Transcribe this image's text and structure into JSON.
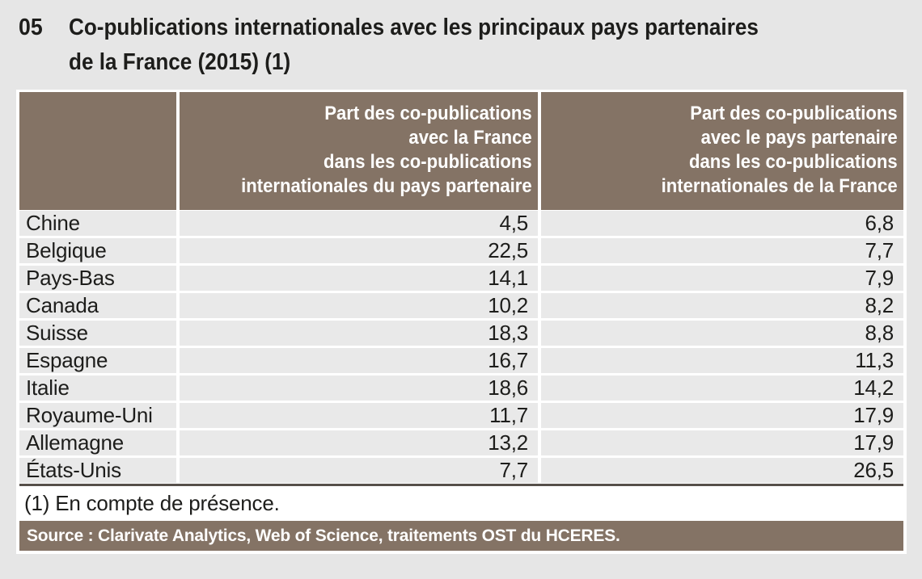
{
  "colors": {
    "accent_taupe": "#847365",
    "row_gray": "#e9e9e9",
    "page_background": "#e6e6e6",
    "panel_white": "#ffffff",
    "text_dark": "#1d1d1b",
    "table_bottom_rule": "#56504a"
  },
  "title": {
    "number": "05",
    "lines": [
      "Co-publications internationales avec les principaux pays partenaires",
      "de la France (2015) (1)"
    ],
    "full": "Co-publications internationales avec les principaux pays partenaires de la France (2015) (1)"
  },
  "table": {
    "headers": [
      {
        "lines": [
          "Part des co-publications",
          "avec la France",
          "dans les co-publications",
          "internationales du pays partenaire"
        ]
      },
      {
        "lines": [
          "Part des co-publications",
          "avec le pays partenaire",
          "dans les co-publications",
          "internationales de la France"
        ]
      }
    ],
    "rows": [
      {
        "country": "Chine",
        "part_avec_france": "4,5",
        "part_avec_pays": "6,8"
      },
      {
        "country": "Belgique",
        "part_avec_france": "22,5",
        "part_avec_pays": "7,7"
      },
      {
        "country": "Pays-Bas",
        "part_avec_france": "14,1",
        "part_avec_pays": "7,9"
      },
      {
        "country": "Canada",
        "part_avec_france": "10,2",
        "part_avec_pays": "8,2"
      },
      {
        "country": "Suisse",
        "part_avec_france": "18,3",
        "part_avec_pays": "8,8"
      },
      {
        "country": "Espagne",
        "part_avec_france": "16,7",
        "part_avec_pays": "11,3"
      },
      {
        "country": "Italie",
        "part_avec_france": "18,6",
        "part_avec_pays": "14,2"
      },
      {
        "country": "Royaume-Uni",
        "part_avec_france": "11,7",
        "part_avec_pays": "17,9"
      },
      {
        "country": "Allemagne",
        "part_avec_france": "13,2",
        "part_avec_pays": "17,9"
      },
      {
        "country": "États-Unis",
        "part_avec_france": "7,7",
        "part_avec_pays": "26,5"
      }
    ]
  },
  "footnote": "(1) En compte de présence.",
  "source": "Source : Clarivate Analytics, Web of Science, traitements OST du HCERES.",
  "chart_data": {
    "type": "table",
    "title": "Co-publications internationales avec les principaux pays partenaires de la France (2015) (1)",
    "categories": [
      "Chine",
      "Belgique",
      "Pays-Bas",
      "Canada",
      "Suisse",
      "Espagne",
      "Italie",
      "Royaume-Uni",
      "Allemagne",
      "États-Unis"
    ],
    "series": [
      {
        "name": "Part des co-publications avec la France dans les co-publications internationales du pays partenaire",
        "values": [
          4.5,
          22.5,
          14.1,
          10.2,
          18.3,
          16.7,
          18.6,
          11.7,
          13.2,
          7.7
        ]
      },
      {
        "name": "Part des co-publications avec le pays partenaire dans les co-publications internationales de la France",
        "values": [
          6.8,
          7.7,
          7.9,
          8.2,
          8.8,
          11.3,
          14.2,
          17.9,
          17.9,
          26.5
        ]
      }
    ],
    "footnote": "(1) En compte de présence.",
    "source": "Source : Clarivate Analytics, Web of Science, traitements OST du HCERES."
  }
}
